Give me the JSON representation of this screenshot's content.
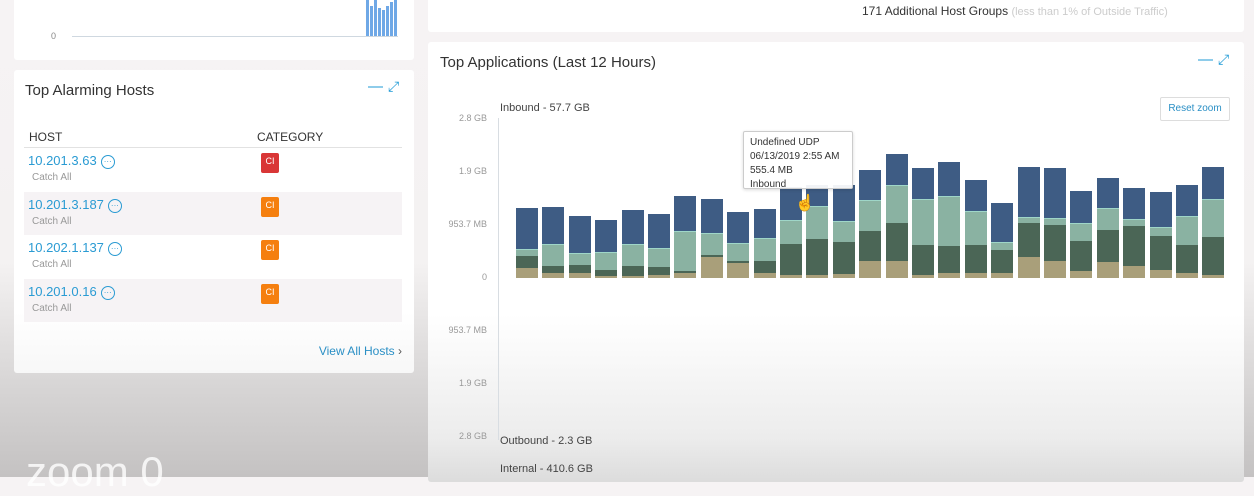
{
  "top_panel": {
    "axis_zero": "0"
  },
  "groups_panel": {
    "count_text": "171 Additional Host Groups",
    "note": "(less than 1% of Outside Traffic)"
  },
  "alarming_hosts": {
    "title": "Top Alarming Hosts",
    "columns": [
      "HOST",
      "CATEGORY"
    ],
    "rows": [
      {
        "host": "10.201.3.63",
        "group": "Catch All",
        "category": "CI",
        "color": "#d93636"
      },
      {
        "host": "10.201.3.187",
        "group": "Catch All",
        "category": "CI",
        "color": "#f57f0f"
      },
      {
        "host": "10.202.1.137",
        "group": "Catch All",
        "category": "CI",
        "color": "#f57f0f"
      },
      {
        "host": "10.201.0.16",
        "group": "Catch All",
        "category": "CI",
        "color": "#f57f0f"
      }
    ],
    "view_all": "View All Hosts"
  },
  "apps": {
    "title": "Top Applications (Last 12 Hours)",
    "reset_zoom": "Reset zoom",
    "tooltip": {
      "line1": "Undefined UDP",
      "line2": "06/13/2019 2:55 AM",
      "line3": "555.4 MB",
      "line4": "Inbound"
    }
  },
  "overlay_text": "zoom 0",
  "chart_data": {
    "type": "bar",
    "stacked": true,
    "unit": "MB",
    "y_ticks": [
      "2.8 GB",
      "1.9 GB",
      "953.7 MB",
      "0",
      "953.7 MB",
      "1.9 GB",
      "2.8 GB"
    ],
    "legend": [
      "Inbound - 57.7 GB",
      "Outbound - 2.3 GB",
      "Internal - 410.6 GB"
    ],
    "series_colors": [
      "#a99f7a",
      "#4b6656",
      "#8ab2a2",
      "#3e5c84"
    ],
    "series": [
      {
        "values": [
          180,
          90,
          90,
          30,
          30,
          60,
          90,
          372,
          270,
          90,
          60,
          60,
          72,
          300,
          312,
          60,
          90,
          90,
          90,
          372,
          312,
          120,
          288,
          210,
          150,
          90,
          48
        ]
      },
      {
        "values": [
          210,
          132,
          150,
          120,
          192,
          132,
          30,
          48,
          42,
          210,
          552,
          648,
          576,
          540,
          678,
          540,
          480,
          510,
          420,
          618,
          648,
          540,
          582,
          720,
          600,
          498,
          684
        ]
      },
      {
        "values": [
          120,
          366,
          192,
          300,
          378,
          336,
          702,
          372,
          300,
          408,
          420,
          564,
          360,
          552,
          660,
          810,
          882,
          588,
          120,
          90,
          108,
          312,
          378,
          120,
          150,
          504,
          678
        ]
      },
      {
        "values": [
          738,
          678,
          666,
          576,
          606,
          612,
          636,
          618,
          564,
          522,
          588,
          378,
          642,
          540,
          564,
          558,
          624,
          558,
          696,
          894,
          888,
          570,
          528,
          558,
          624,
          564,
          576
        ]
      }
    ]
  }
}
